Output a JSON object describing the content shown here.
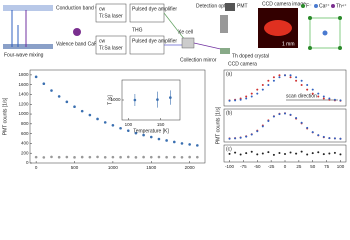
{
  "diagram": {
    "conduction_band": "Conduction band CaF₂",
    "valence_band": "Valence band CaF₂",
    "four_wave": "Four-wave mixing",
    "cw1": "cw",
    "tisa1": "Ti:Sa laser",
    "pulsed1": "Pulsed dye amplifier",
    "cw2": "cw",
    "tisa2": "Ti:Sa laser",
    "pulsed2": "Pulsed dye amplifier",
    "thg": "THG",
    "xe": "Xe cell",
    "det": "Detection optics",
    "pmt": "PMT",
    "ccd_image": "CCD camera image",
    "scale": "1 mm",
    "crystal": "Th doped crystal",
    "mirror": "Collection mirror",
    "ccd": "CCD camera",
    "legend": [
      "F⁻",
      "Ca²⁺",
      "Th⁴⁺"
    ]
  },
  "chart_data": [
    {
      "type": "scatter",
      "ylabel": "PMT counts [1/s]",
      "x": [
        0,
        100,
        200,
        300,
        400,
        500,
        600,
        700,
        800,
        900,
        1000,
        1100,
        1200,
        1300,
        1400,
        1500,
        1600,
        1700,
        1800,
        1900,
        2000,
        2100
      ],
      "series": [
        {
          "color": "#3a6fb0",
          "values": [
            1760,
            1620,
            1480,
            1360,
            1250,
            1150,
            1060,
            980,
            900,
            830,
            770,
            710,
            660,
            610,
            570,
            530,
            490,
            460,
            430,
            400,
            380,
            360
          ]
        },
        {
          "color": "#999999",
          "values": [
            120,
            115,
            125,
            118,
            122,
            116,
            121,
            119,
            124,
            117,
            120,
            118,
            123,
            116,
            121,
            119,
            122,
            118,
            120,
            117,
            121,
            119
          ]
        }
      ],
      "xlim": [
        -80,
        2200
      ],
      "ylim": [
        0,
        1900
      ],
      "xticks": [
        0,
        500,
        1000,
        1500,
        2000
      ],
      "yticks": [
        0,
        200,
        400,
        600,
        800,
        1000,
        1200,
        1400,
        1600,
        1800
      ]
    },
    {
      "type": "errorbar",
      "xlabel": "Temperature [K]",
      "ylabel": "T [s]",
      "x": [
        110,
        145,
        165
      ],
      "values": [
        1000,
        1010,
        1060
      ],
      "errors": [
        150,
        200,
        180
      ],
      "color": "#3a6fb0",
      "xlim": [
        90,
        180
      ],
      "ylim": [
        500,
        1500
      ],
      "xticks": [
        100,
        150
      ],
      "yticks": [
        1000
      ]
    },
    {
      "type": "scatter",
      "panel": "(a)",
      "annotation": "scan direction",
      "x": [
        -100,
        -90,
        -80,
        -70,
        -60,
        -50,
        -40,
        -30,
        -20,
        -10,
        0,
        10,
        20,
        30,
        40,
        50,
        60,
        70,
        80,
        90,
        100
      ],
      "series": [
        {
          "color": "#d03030",
          "values": [
            17,
            19,
            23,
            29,
            38,
            50,
            64,
            77,
            88,
            94,
            94,
            88,
            77,
            64,
            50,
            38,
            29,
            23,
            19,
            17,
            16
          ]
        },
        {
          "color": "#3060c0",
          "values": [
            16,
            17,
            19,
            23,
            29,
            38,
            50,
            64,
            77,
            88,
            94,
            94,
            88,
            77,
            64,
            50,
            38,
            29,
            23,
            19,
            17
          ]
        }
      ],
      "xlim": [
        -110,
        110
      ],
      "ylim": [
        0,
        110
      ]
    },
    {
      "type": "scatter",
      "panel": "(b)",
      "ylabel": "PMT counts [1/s]",
      "x": [
        -100,
        -90,
        -80,
        -70,
        -60,
        -50,
        -40,
        -30,
        -20,
        -10,
        0,
        10,
        20,
        30,
        40,
        50,
        60,
        70,
        80,
        90,
        100
      ],
      "series": [
        {
          "color": "#d03030",
          "values": [
            12,
            13,
            15,
            19,
            26,
            38,
            55,
            72,
            86,
            94,
            96,
            90,
            78,
            62,
            45,
            32,
            22,
            16,
            13,
            12,
            11
          ]
        },
        {
          "color": "#3060c0",
          "values": [
            11,
            12,
            14,
            18,
            25,
            36,
            52,
            70,
            85,
            93,
            95,
            91,
            80,
            64,
            47,
            33,
            23,
            17,
            13,
            12,
            11
          ]
        }
      ],
      "xlim": [
        -110,
        110
      ],
      "ylim": [
        0,
        110
      ]
    },
    {
      "type": "scatter",
      "panel": "(c)",
      "x": [
        -100,
        -90,
        -80,
        -70,
        -60,
        -50,
        -40,
        -30,
        -20,
        -10,
        0,
        10,
        20,
        30,
        40,
        50,
        60,
        70,
        80,
        90,
        100
      ],
      "series": [
        {
          "color": "#222222",
          "values": [
            48,
            55,
            44,
            52,
            60,
            45,
            50,
            58,
            42,
            53,
            47,
            56,
            49,
            61,
            44,
            52,
            57,
            46,
            50,
            54,
            45
          ]
        }
      ],
      "xlim": [
        -110,
        110
      ],
      "ylim": [
        0,
        100
      ],
      "xticks": [
        -100,
        -75,
        -50,
        -25,
        0,
        25,
        50,
        75,
        100
      ]
    }
  ]
}
